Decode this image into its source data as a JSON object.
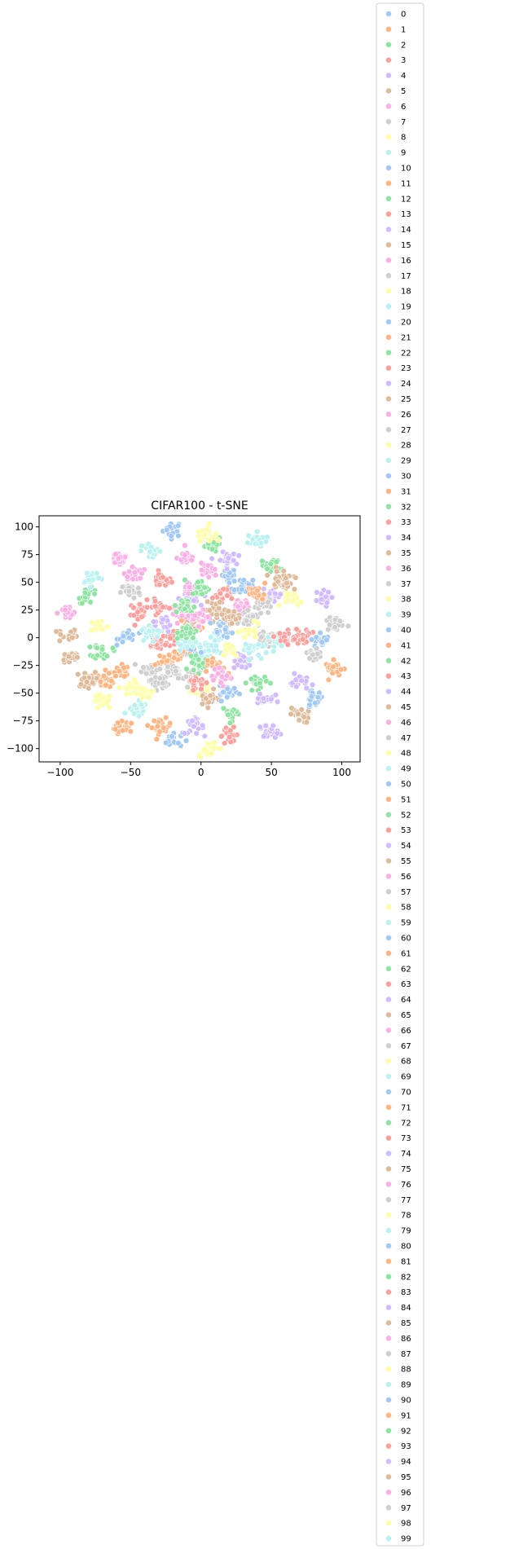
{
  "chart_data": {
    "type": "scatter",
    "title": "CIFAR100 - t-SNE",
    "xlabel": "",
    "ylabel": "",
    "xlim": [
      -115,
      113
    ],
    "ylim": [
      -112,
      110
    ],
    "x_ticks": [
      -100,
      -50,
      0,
      50,
      100
    ],
    "y_ticks": [
      100,
      75,
      50,
      25,
      0,
      -25,
      -50,
      -75,
      -100
    ],
    "grid": false,
    "legend_position": "right-outside",
    "palette": [
      "#a1c9f4",
      "#ffb482",
      "#8de5a1",
      "#ff9f9b",
      "#d0bbff",
      "#debb9b",
      "#fab0e4",
      "#cfcfcf",
      "#fffea3",
      "#b9f2f0"
    ],
    "series": [
      {
        "name": "0",
        "center": [
          -20,
          98
        ]
      },
      {
        "name": "1",
        "center": [
          -55,
          -82
        ]
      },
      {
        "name": "2",
        "center": [
          8,
          85
        ]
      },
      {
        "name": "3",
        "center": [
          -28,
          52
        ]
      },
      {
        "name": "4",
        "center": [
          30,
          -22
        ]
      },
      {
        "name": "5",
        "center": [
          -95,
          2
        ]
      },
      {
        "name": "6",
        "center": [
          -58,
          72
        ]
      },
      {
        "name": "7",
        "center": [
          -35,
          -28
        ]
      },
      {
        "name": "8",
        "center": [
          3,
          95
        ]
      },
      {
        "name": "9",
        "center": [
          40,
          88
        ]
      },
      {
        "name": "10",
        "center": [
          -20,
          -92
        ]
      },
      {
        "name": "11",
        "center": [
          -28,
          -80
        ]
      },
      {
        "name": "12",
        "center": [
          22,
          -68
        ]
      },
      {
        "name": "13",
        "center": [
          20,
          -88
        ]
      },
      {
        "name": "14",
        "center": [
          -5,
          -80
        ]
      },
      {
        "name": "15",
        "center": [
          -92,
          -18
        ]
      },
      {
        "name": "16",
        "center": [
          -10,
          72
        ]
      },
      {
        "name": "17",
        "center": [
          45,
          -2
        ]
      },
      {
        "name": "18",
        "center": [
          -70,
          -58
        ]
      },
      {
        "name": "19",
        "center": [
          -45,
          -65
        ]
      },
      {
        "name": "20",
        "center": [
          -52,
          2
        ]
      },
      {
        "name": "21",
        "center": [
          -68,
          -38
        ]
      },
      {
        "name": "22",
        "center": [
          -80,
          38
        ]
      },
      {
        "name": "23",
        "center": [
          -45,
          25
        ]
      },
      {
        "name": "24",
        "center": [
          -8,
          35
        ]
      },
      {
        "name": "25",
        "center": [
          -82,
          -38
        ]
      },
      {
        "name": "26",
        "center": [
          -95,
          22
        ]
      },
      {
        "name": "27",
        "center": [
          -50,
          42
        ]
      },
      {
        "name": "28",
        "center": [
          -72,
          10
        ]
      },
      {
        "name": "29",
        "center": [
          -78,
          55
        ]
      },
      {
        "name": "30",
        "center": [
          85,
          -2
        ]
      },
      {
        "name": "31",
        "center": [
          -58,
          -30
        ]
      },
      {
        "name": "32",
        "center": [
          -70,
          -12
        ]
      },
      {
        "name": "33",
        "center": [
          -32,
          -5
        ]
      },
      {
        "name": "34",
        "center": [
          85,
          35
        ]
      },
      {
        "name": "35",
        "center": [
          70,
          -70
        ]
      },
      {
        "name": "36",
        "center": [
          -48,
          58
        ]
      },
      {
        "name": "37",
        "center": [
          -30,
          -40
        ]
      },
      {
        "name": "38",
        "center": [
          0,
          -50
        ]
      },
      {
        "name": "39",
        "center": [
          -35,
          78
        ]
      },
      {
        "name": "40",
        "center": [
          20,
          55
        ]
      },
      {
        "name": "41",
        "center": [
          -25,
          -20
        ]
      },
      {
        "name": "42",
        "center": [
          50,
          65
        ]
      },
      {
        "name": "43",
        "center": [
          -20,
          0
        ]
      },
      {
        "name": "44",
        "center": [
          18,
          70
        ]
      },
      {
        "name": "45",
        "center": [
          10,
          25
        ]
      },
      {
        "name": "46",
        "center": [
          -15,
          22
        ]
      },
      {
        "name": "47",
        "center": [
          -5,
          -35
        ]
      },
      {
        "name": "48",
        "center": [
          65,
          35
        ]
      },
      {
        "name": "49",
        "center": [
          5,
          -10
        ]
      },
      {
        "name": "50",
        "center": [
          80,
          -55
        ]
      },
      {
        "name": "51",
        "center": [
          95,
          -28
        ]
      },
      {
        "name": "52",
        "center": [
          40,
          -40
        ]
      },
      {
        "name": "53",
        "center": [
          15,
          40
        ]
      },
      {
        "name": "54",
        "center": [
          70,
          -40
        ]
      },
      {
        "name": "55",
        "center": [
          5,
          -55
        ]
      },
      {
        "name": "56",
        "center": [
          28,
          30
        ]
      },
      {
        "name": "57",
        "center": [
          35,
          15
        ]
      },
      {
        "name": "58",
        "center": [
          35,
          5
        ]
      },
      {
        "name": "59",
        "center": [
          12,
          0
        ]
      },
      {
        "name": "60",
        "center": [
          -10,
          -12
        ]
      },
      {
        "name": "61",
        "center": [
          -15,
          -15
        ]
      },
      {
        "name": "62",
        "center": [
          -2,
          -25
        ]
      },
      {
        "name": "63",
        "center": [
          72,
          2
        ]
      },
      {
        "name": "64",
        "center": [
          50,
          38
        ]
      },
      {
        "name": "65",
        "center": [
          60,
          50
        ]
      },
      {
        "name": "66",
        "center": [
          -8,
          45
        ]
      },
      {
        "name": "67",
        "center": [
          42,
          30
        ]
      },
      {
        "name": "68",
        "center": [
          -50,
          -45
        ]
      },
      {
        "name": "69",
        "center": [
          -10,
          -5
        ]
      },
      {
        "name": "70",
        "center": [
          30,
          45
        ]
      },
      {
        "name": "71",
        "center": [
          -5,
          10
        ]
      },
      {
        "name": "72",
        "center": [
          -12,
          28
        ]
      },
      {
        "name": "73",
        "center": [
          -30,
          28
        ]
      },
      {
        "name": "74",
        "center": [
          -28,
          12
        ]
      },
      {
        "name": "75",
        "center": [
          -8,
          10
        ]
      },
      {
        "name": "76",
        "center": [
          0,
          18
        ]
      },
      {
        "name": "77",
        "center": [
          -20,
          -30
        ]
      },
      {
        "name": "78",
        "center": [
          20,
          -10
        ]
      },
      {
        "name": "79",
        "center": [
          -35,
          5
        ]
      },
      {
        "name": "80",
        "center": [
          20,
          -50
        ]
      },
      {
        "name": "81",
        "center": [
          10,
          -25
        ]
      },
      {
        "name": "82",
        "center": [
          0,
          45
        ]
      },
      {
        "name": "83",
        "center": [
          -2,
          -40
        ]
      },
      {
        "name": "84",
        "center": [
          45,
          -55
        ]
      },
      {
        "name": "85",
        "center": [
          55,
          55
        ]
      },
      {
        "name": "86",
        "center": [
          5,
          60
        ]
      },
      {
        "name": "87",
        "center": [
          80,
          -15
        ]
      },
      {
        "name": "88",
        "center": [
          5,
          -100
        ]
      },
      {
        "name": "89",
        "center": [
          55,
          -2
        ]
      },
      {
        "name": "90",
        "center": [
          15,
          8
        ]
      },
      {
        "name": "91",
        "center": [
          40,
          40
        ]
      },
      {
        "name": "92",
        "center": [
          -10,
          5
        ]
      },
      {
        "name": "93",
        "center": [
          60,
          0
        ]
      },
      {
        "name": "94",
        "center": [
          48,
          -85
        ]
      },
      {
        "name": "95",
        "center": [
          20,
          20
        ]
      },
      {
        "name": "96",
        "center": [
          15,
          -35
        ]
      },
      {
        "name": "97",
        "center": [
          95,
          12
        ]
      },
      {
        "name": "98",
        "center": [
          -40,
          -50
        ]
      },
      {
        "name": "99",
        "center": [
          35,
          -10
        ]
      }
    ]
  }
}
